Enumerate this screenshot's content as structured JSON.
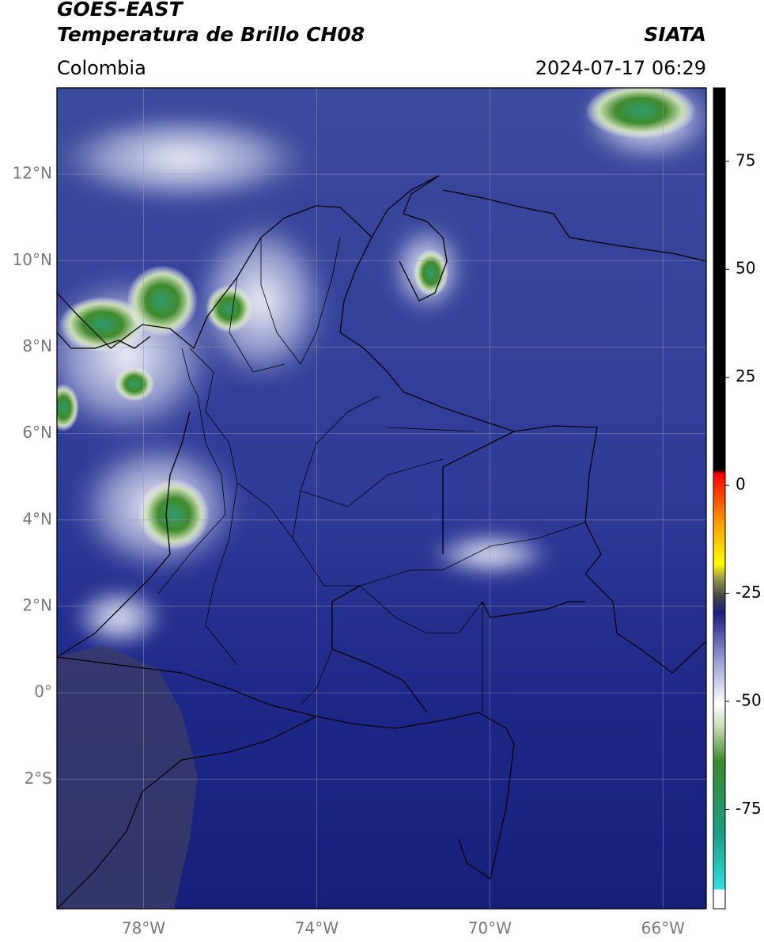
{
  "header": {
    "title_line1": "GOES-EAST",
    "title_line2": "Temperatura de Brillo CH08",
    "agency": "SIATA",
    "region": "Colombia",
    "datetime": "2024-07-17 06:29"
  },
  "map": {
    "lon_range": [
      -80,
      -65
    ],
    "lat_range": [
      -5,
      14
    ],
    "lat_ticks": [
      {
        "value": 12,
        "label": "12°N"
      },
      {
        "value": 10,
        "label": "10°N"
      },
      {
        "value": 8,
        "label": "8°N"
      },
      {
        "value": 6,
        "label": "6°N"
      },
      {
        "value": 4,
        "label": "4°N"
      },
      {
        "value": 2,
        "label": "2°N"
      },
      {
        "value": 0,
        "label": "0°"
      },
      {
        "value": -2,
        "label": "2°S"
      }
    ],
    "lon_ticks": [
      {
        "value": -78,
        "label": "78°W"
      },
      {
        "value": -74,
        "label": "74°W"
      },
      {
        "value": -70,
        "label": "70°W"
      },
      {
        "value": -66,
        "label": "66°W"
      }
    ],
    "grid": true
  },
  "colorbar": {
    "range": [
      -98,
      92
    ],
    "ticks": [
      75,
      50,
      25,
      0,
      -25,
      -50,
      -75
    ]
  }
}
